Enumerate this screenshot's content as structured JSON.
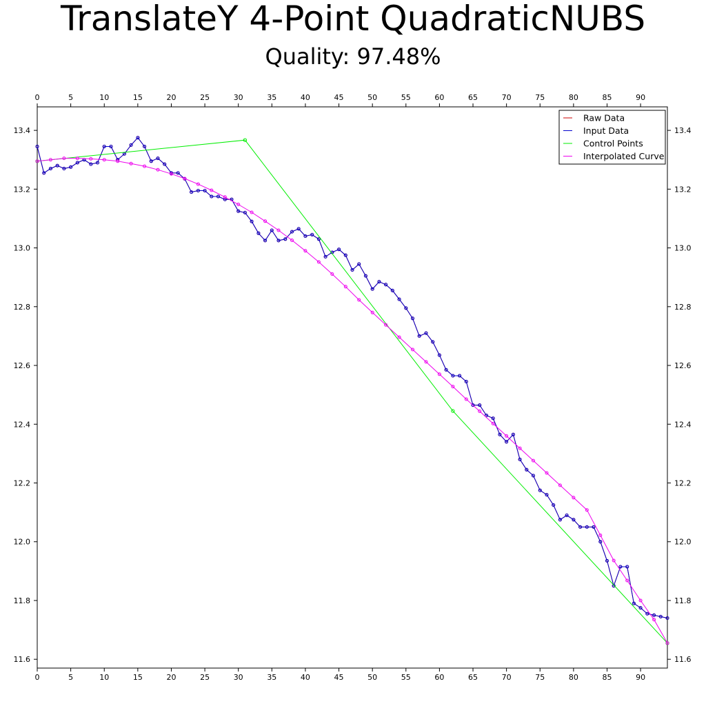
{
  "chart_data": {
    "type": "line",
    "title": "TranslateY 4-Point QuadraticNUBS",
    "subtitle": "Quality: 97.48%",
    "xlabel": "",
    "ylabel": "",
    "xlim": [
      0,
      94
    ],
    "ylim": [
      11.57,
      13.48
    ],
    "x_ticks": [
      0,
      5,
      10,
      15,
      20,
      25,
      30,
      35,
      40,
      45,
      50,
      55,
      60,
      65,
      70,
      75,
      80,
      85,
      90
    ],
    "y_ticks": [
      11.6,
      11.8,
      12.0,
      12.2,
      12.4,
      12.6,
      12.8,
      13.0,
      13.2,
      13.4
    ],
    "x_tick_labels": [
      "0",
      "5",
      "10",
      "15",
      "20",
      "25",
      "30",
      "35",
      "40",
      "45",
      "50",
      "55",
      "60",
      "65",
      "70",
      "75",
      "80",
      "85",
      "90"
    ],
    "y_tick_labels": [
      "11.6",
      "11.8",
      "12.0",
      "12.2",
      "12.4",
      "12.6",
      "12.8",
      "13.0",
      "13.2",
      "13.4"
    ],
    "grid": false,
    "legend_position": "top-right",
    "legend": [
      "Raw Data",
      "Input Data",
      "Control Points",
      "Interpolated Curve"
    ],
    "series": [
      {
        "name": "Raw Data",
        "color": "#cc0000",
        "marker": "circle",
        "x": [
          0,
          1,
          2,
          3,
          4,
          5,
          6,
          7,
          8,
          9,
          10,
          11,
          12,
          13,
          14,
          15,
          16,
          17,
          18,
          19,
          20,
          21,
          22,
          23,
          24,
          25,
          26,
          27,
          28,
          29,
          30,
          31,
          32,
          33,
          34,
          35,
          36,
          37,
          38,
          39,
          40,
          41,
          42,
          43,
          44,
          45,
          46,
          47,
          48,
          49,
          50,
          51,
          52,
          53,
          54,
          55,
          56,
          57,
          58,
          59,
          60,
          61,
          62,
          63,
          64,
          65,
          66,
          67,
          68,
          69,
          70,
          71,
          72,
          73,
          74,
          75,
          76,
          77,
          78,
          79,
          80,
          81,
          82,
          83,
          84,
          85,
          86,
          87,
          88,
          89,
          90,
          91,
          92,
          93,
          94
        ],
        "y": [
          13.345,
          13.255,
          13.27,
          13.28,
          13.27,
          13.275,
          13.29,
          13.3,
          13.285,
          13.29,
          13.345,
          13.345,
          13.3,
          13.32,
          13.35,
          13.375,
          13.345,
          13.295,
          13.305,
          13.285,
          13.255,
          13.255,
          13.235,
          13.19,
          13.195,
          13.195,
          13.175,
          13.175,
          13.165,
          13.165,
          13.125,
          13.12,
          13.09,
          13.05,
          13.025,
          13.06,
          13.025,
          13.03,
          13.055,
          13.065,
          13.04,
          13.045,
          13.03,
          12.97,
          12.985,
          12.995,
          12.975,
          12.925,
          12.945,
          12.905,
          12.86,
          12.885,
          12.875,
          12.855,
          12.825,
          12.795,
          12.76,
          12.7,
          12.71,
          12.68,
          12.635,
          12.585,
          12.565,
          12.565,
          12.545,
          12.465,
          12.465,
          12.43,
          12.42,
          12.365,
          12.34,
          12.365,
          12.28,
          12.245,
          12.225,
          12.175,
          12.16,
          12.125,
          12.075,
          12.09,
          12.075,
          12.05,
          12.05,
          12.05,
          12.0,
          11.935,
          11.85,
          11.915,
          11.915,
          11.79,
          11.775,
          11.755,
          11.75,
          11.745,
          11.74
        ]
      },
      {
        "name": "Input Data",
        "color": "#0000cc",
        "marker": "circle",
        "x": [
          0,
          1,
          2,
          3,
          4,
          5,
          6,
          7,
          8,
          9,
          10,
          11,
          12,
          13,
          14,
          15,
          16,
          17,
          18,
          19,
          20,
          21,
          22,
          23,
          24,
          25,
          26,
          27,
          28,
          29,
          30,
          31,
          32,
          33,
          34,
          35,
          36,
          37,
          38,
          39,
          40,
          41,
          42,
          43,
          44,
          45,
          46,
          47,
          48,
          49,
          50,
          51,
          52,
          53,
          54,
          55,
          56,
          57,
          58,
          59,
          60,
          61,
          62,
          63,
          64,
          65,
          66,
          67,
          68,
          69,
          70,
          71,
          72,
          73,
          74,
          75,
          76,
          77,
          78,
          79,
          80,
          81,
          82,
          83,
          84,
          85,
          86,
          87,
          88,
          89,
          90,
          91,
          92,
          93,
          94
        ],
        "y": [
          13.345,
          13.255,
          13.27,
          13.28,
          13.27,
          13.275,
          13.29,
          13.3,
          13.285,
          13.29,
          13.345,
          13.345,
          13.3,
          13.32,
          13.35,
          13.375,
          13.345,
          13.295,
          13.305,
          13.285,
          13.255,
          13.255,
          13.235,
          13.19,
          13.195,
          13.195,
          13.175,
          13.175,
          13.165,
          13.165,
          13.125,
          13.12,
          13.09,
          13.05,
          13.025,
          13.06,
          13.025,
          13.03,
          13.055,
          13.065,
          13.04,
          13.045,
          13.03,
          12.97,
          12.985,
          12.995,
          12.975,
          12.925,
          12.945,
          12.905,
          12.86,
          12.885,
          12.875,
          12.855,
          12.825,
          12.795,
          12.76,
          12.7,
          12.71,
          12.68,
          12.635,
          12.585,
          12.565,
          12.565,
          12.545,
          12.465,
          12.465,
          12.43,
          12.42,
          12.365,
          12.34,
          12.365,
          12.28,
          12.245,
          12.225,
          12.175,
          12.16,
          12.125,
          12.075,
          12.09,
          12.075,
          12.05,
          12.05,
          12.05,
          12.0,
          11.935,
          11.85,
          11.915,
          11.915,
          11.79,
          11.775,
          11.755,
          11.75,
          11.745,
          11.74
        ]
      },
      {
        "name": "Control Points",
        "color": "#00ee00",
        "marker": "circle",
        "x": [
          0,
          31,
          62,
          94
        ],
        "y": [
          13.295,
          13.367,
          12.445,
          11.655
        ]
      },
      {
        "name": "Interpolated Curve",
        "color": "#ee00ee",
        "marker": "circle",
        "x": [
          0,
          2,
          4,
          6,
          8,
          10,
          12,
          14,
          16,
          18,
          20,
          22,
          24,
          26,
          28,
          30,
          32,
          34,
          36,
          38,
          40,
          42,
          44,
          46,
          48,
          50,
          52,
          54,
          56,
          58,
          60,
          62,
          64,
          66,
          68,
          70,
          72,
          74,
          76,
          78,
          80,
          82,
          84,
          86,
          88,
          90,
          92,
          94
        ],
        "y": [
          13.295,
          13.3,
          13.305,
          13.305,
          13.303,
          13.3,
          13.295,
          13.287,
          13.278,
          13.266,
          13.252,
          13.236,
          13.217,
          13.196,
          13.173,
          13.148,
          13.121,
          13.091,
          13.06,
          13.026,
          12.99,
          12.952,
          12.911,
          12.868,
          12.823,
          12.78,
          12.738,
          12.696,
          12.654,
          12.612,
          12.57,
          12.528,
          12.485,
          12.444,
          12.402,
          12.36,
          12.318,
          12.276,
          12.234,
          12.192,
          12.15,
          12.108,
          12.022,
          11.936,
          11.868,
          11.8,
          11.735,
          11.655
        ]
      }
    ]
  }
}
